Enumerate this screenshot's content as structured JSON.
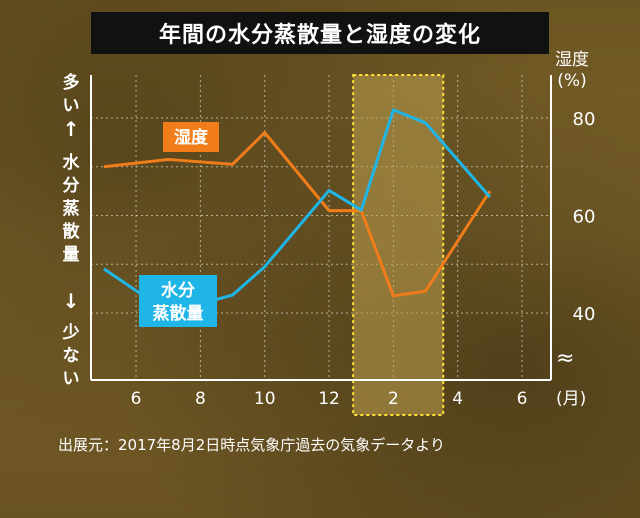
{
  "title": "年間の水分蒸散量と湿度の変化",
  "left_axis": {
    "top_text": "多い",
    "up_arrow": "↑",
    "label": "水分蒸散量",
    "down_arrow": "↓",
    "bottom_text": "少ない"
  },
  "source": "出展元：2017年8月2日時点気象庁過去の気象データより",
  "chart_data": {
    "type": "line",
    "x_ticks": [
      "6",
      "8",
      "10",
      "12",
      "2",
      "4",
      "6"
    ],
    "x_unit": "(月)",
    "y_right_label": "湿度\n(%)",
    "y_right_ticks": [
      80,
      60,
      40
    ],
    "y_axis_break": "≈",
    "highlight_months": [
      "1",
      "2",
      "3"
    ],
    "series": [
      {
        "name": "湿度",
        "color": "#f07d1a",
        "label_bg": "#f07d1a",
        "x": [
          5,
          7,
          9,
          10,
          12,
          13,
          14,
          15,
          17
        ],
        "values": [
          70,
          71.5,
          70.5,
          77,
          61,
          61,
          43.5,
          44.5,
          65
        ]
      },
      {
        "name": "水分\n蒸散量",
        "color": "#1fb5e6",
        "label_bg": "#1fb5e6",
        "x": [
          5,
          7,
          9,
          10,
          12,
          13,
          14,
          15,
          17
        ],
        "values": [
          2.55,
          1.55,
          1.95,
          2.6,
          4.35,
          3.9,
          6.2,
          5.9,
          4.2
        ]
      }
    ]
  }
}
